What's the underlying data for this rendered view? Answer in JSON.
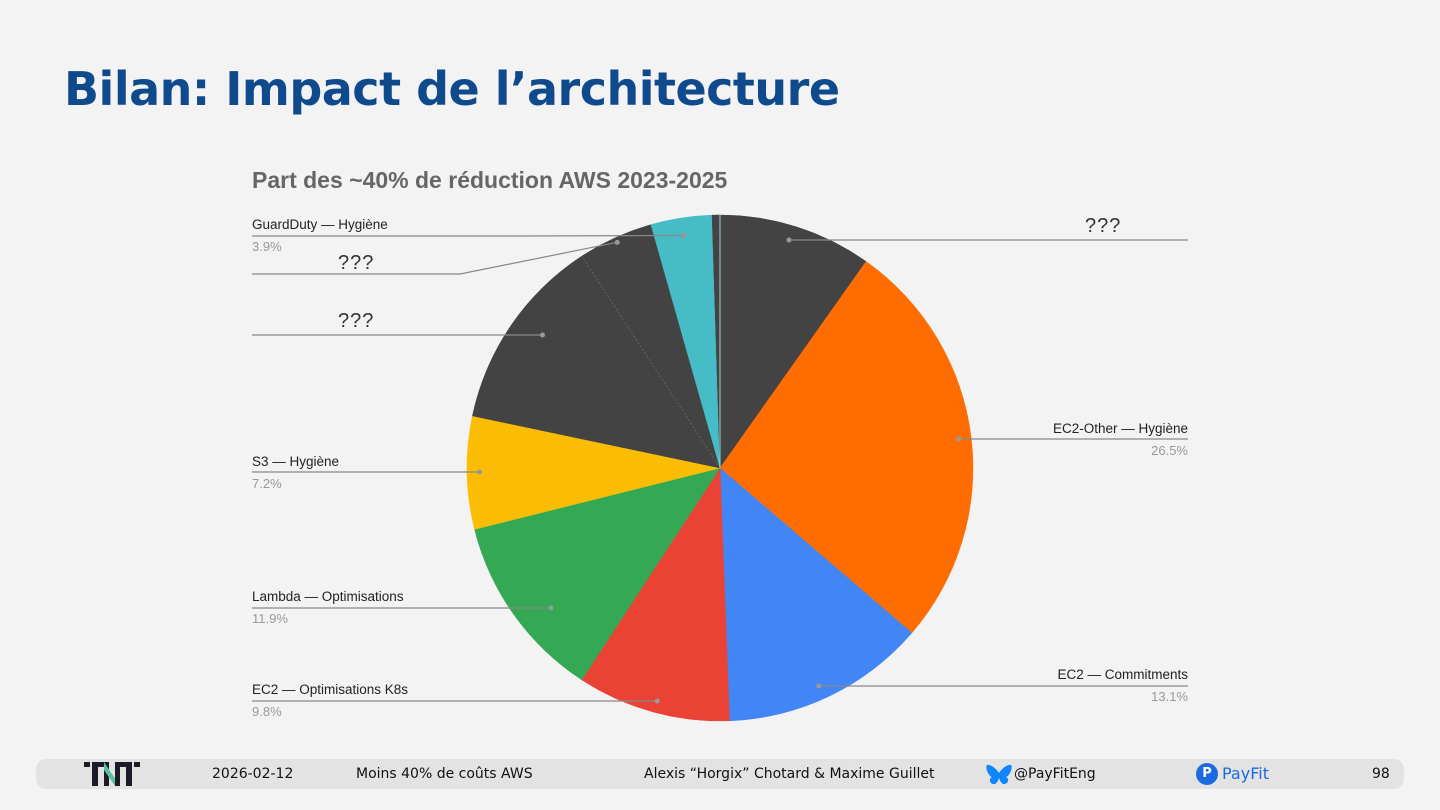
{
  "slide": {
    "title": "Bilan: Impact de l’architecture"
  },
  "chart_data": {
    "type": "pie",
    "title": "Part des ~40% de réduction AWS 2023-2025",
    "start_angle": "12 o'clock, clockwise",
    "slices": [
      {
        "label": "???",
        "value": 9.8,
        "color": "#434343",
        "show_pct": false
      },
      {
        "label": "EC2-Other — Hygiène",
        "value": 26.5,
        "color": "#ff6d01",
        "show_pct": true,
        "pct_text": "26.5%"
      },
      {
        "label": "EC2 — Commitments",
        "value": 13.1,
        "color": "#4285f4",
        "show_pct": true,
        "pct_text": "13.1%"
      },
      {
        "label": "EC2 — Optimisations K8s",
        "value": 9.8,
        "color": "#ea4335",
        "show_pct": true,
        "pct_text": "9.8%"
      },
      {
        "label": "Lambda — Optimisations",
        "value": 11.9,
        "color": "#34a853",
        "show_pct": true,
        "pct_text": "11.9%"
      },
      {
        "label": "S3 — Hygiène",
        "value": 7.2,
        "color": "#fbbc04",
        "show_pct": true,
        "pct_text": "7.2%"
      },
      {
        "label": "???",
        "value": 12.5,
        "color": "#434343",
        "show_pct": false
      },
      {
        "label": "???",
        "value": 4.8,
        "color": "#434343",
        "show_pct": false
      },
      {
        "label": "GuardDuty — Hygiène",
        "value": 3.9,
        "color": "#46bdc6",
        "show_pct": true,
        "pct_text": "3.9%"
      },
      {
        "label": "",
        "value": 0.5,
        "color": "#434343",
        "show_pct": false
      }
    ],
    "legend": "none (callout labels)"
  },
  "callouts": {
    "top_right_unknown": "???",
    "left_unknown_1": "???",
    "left_unknown_2": "???"
  },
  "footer": {
    "date": "2026-02-12",
    "talk_title": "Moins 40% de coûts AWS",
    "speakers": "Alexis “Horgix” Chotard & Maxime Guillet",
    "handle": "@PayFitEng",
    "brand": "PayFit",
    "brand_logo_letter": "P",
    "page_number": "98"
  }
}
